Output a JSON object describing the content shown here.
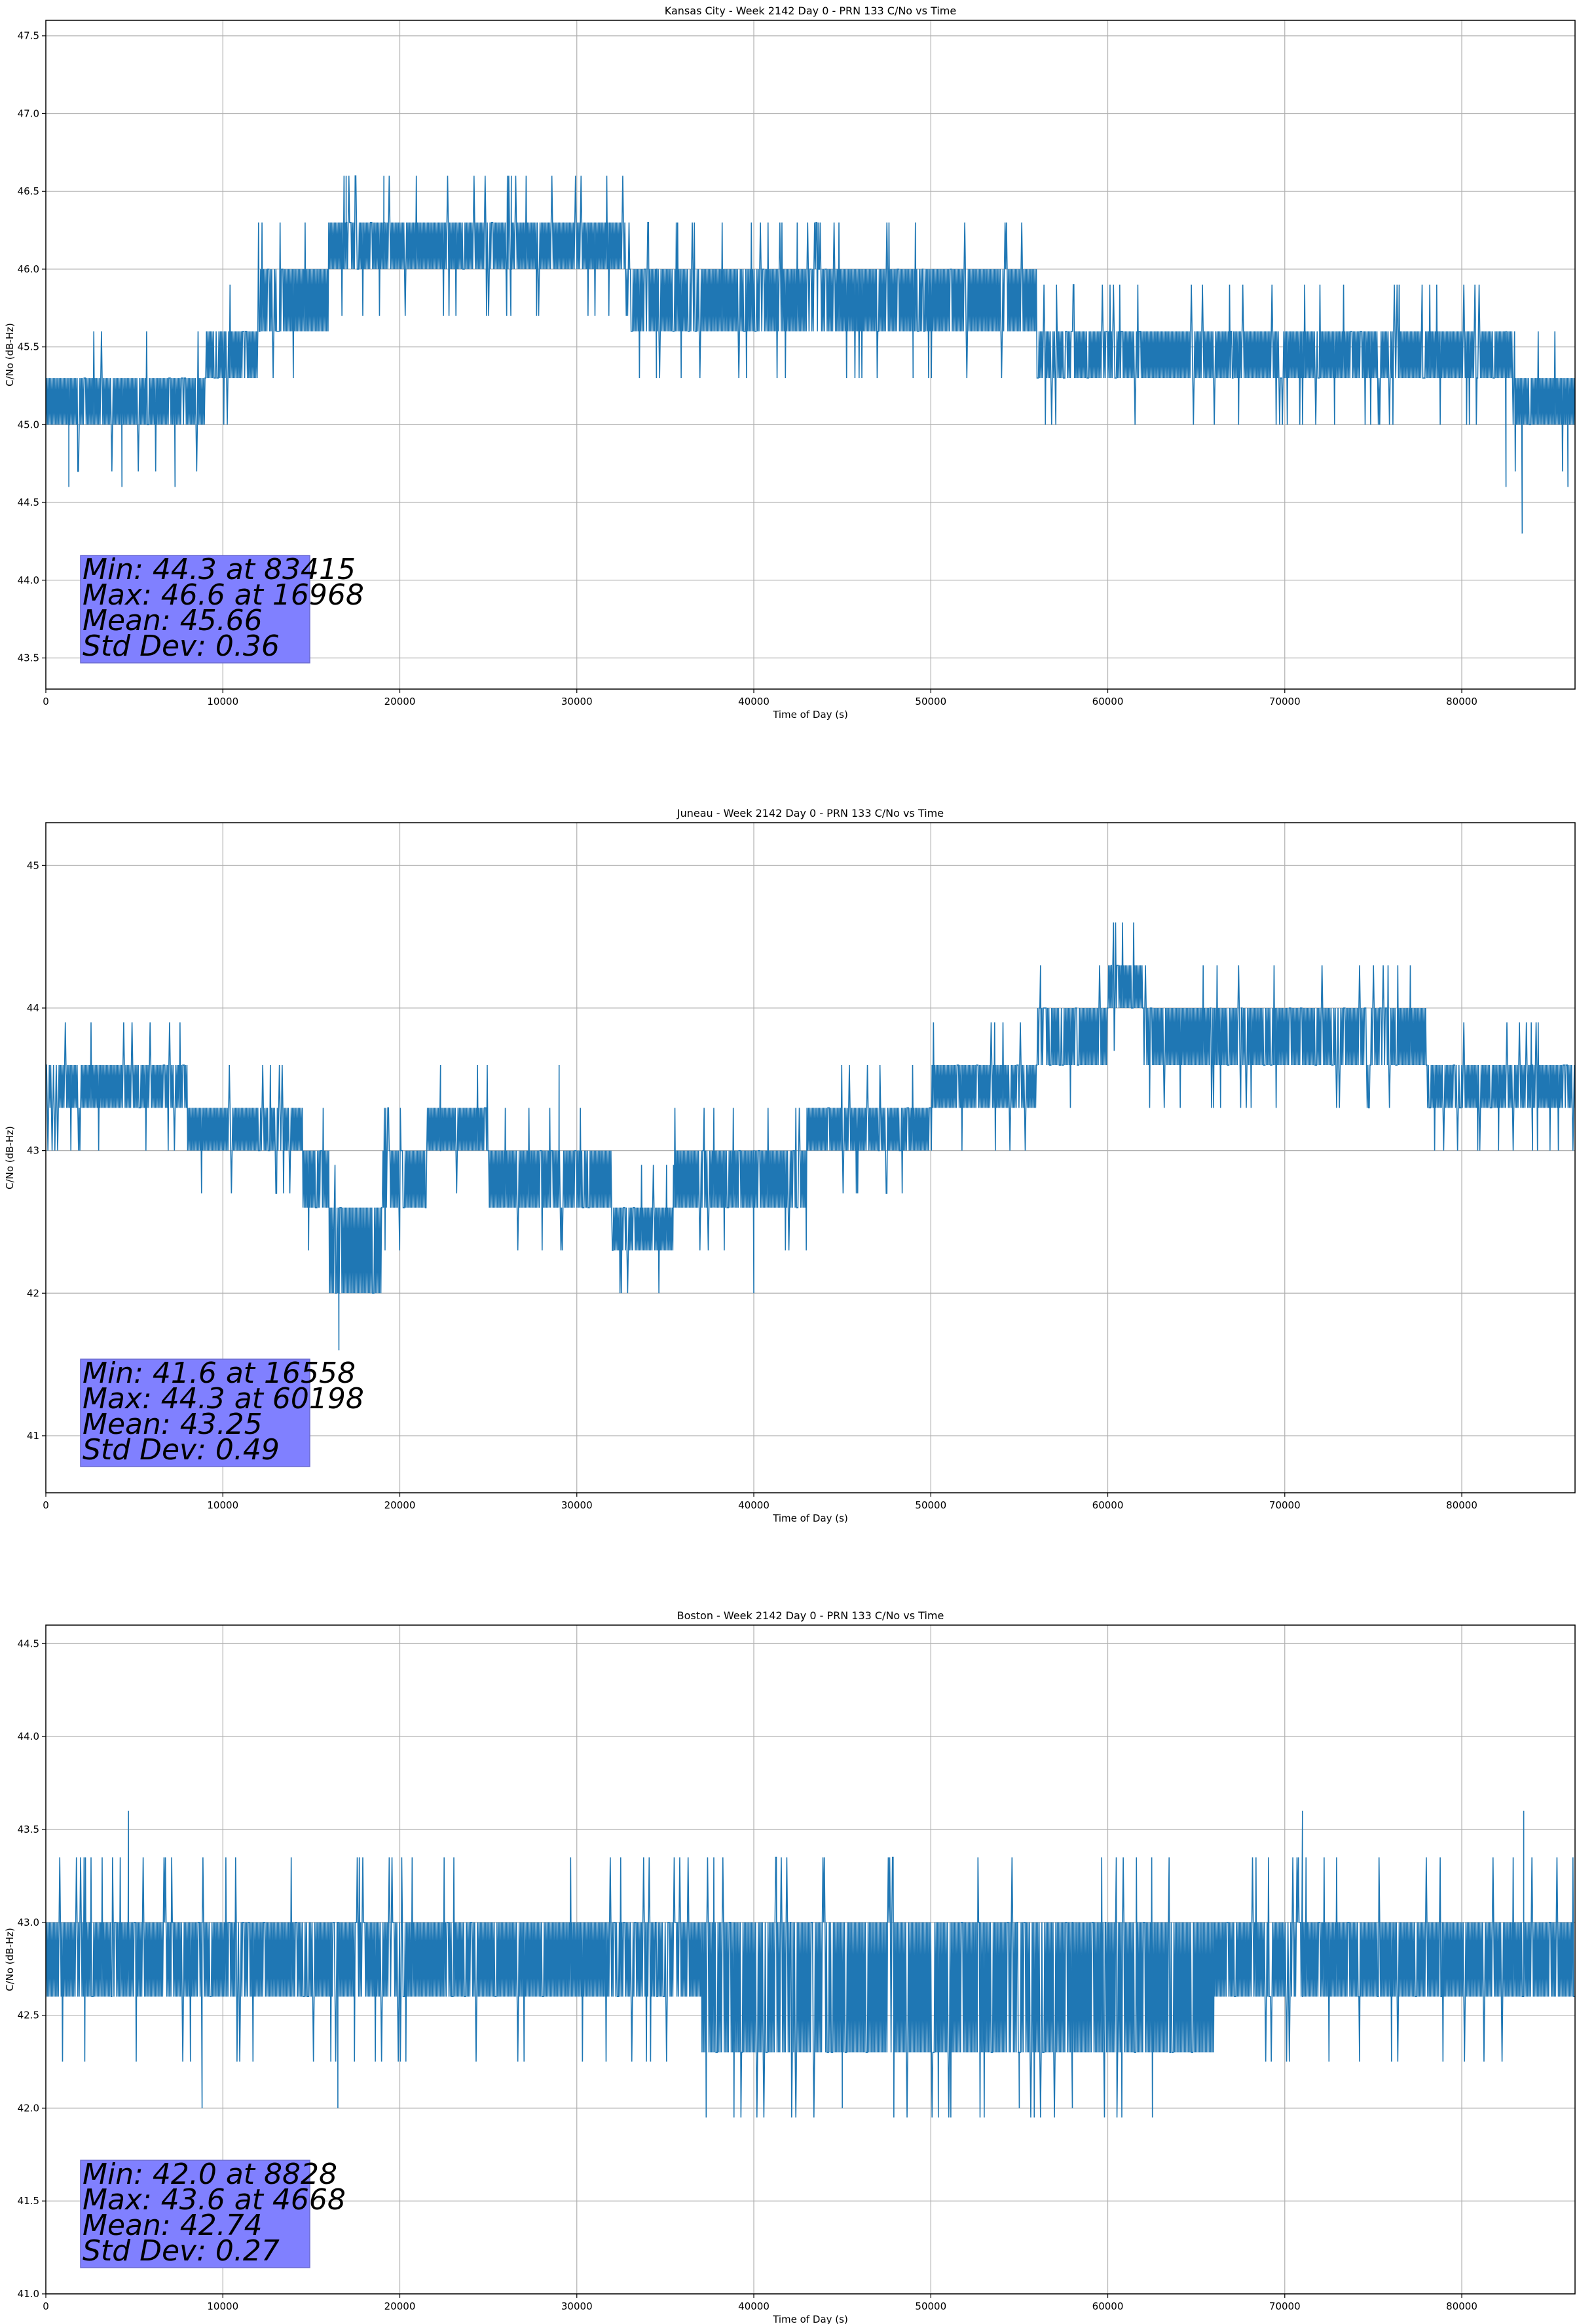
{
  "figure": {
    "background": "#ffffff",
    "line_color": "#1f77b4",
    "stats_box_color": "#8080ff"
  },
  "chart_data": [
    {
      "type": "line",
      "title": "Kansas City - Week 2142 Day 0 - PRN 133 C/No vs Time",
      "xlabel": "Time of Day (s)",
      "ylabel": "C/No (dB-Hz)",
      "xlim": [
        0,
        86400
      ],
      "ylim": [
        43.3,
        47.6
      ],
      "xticks": [
        0,
        10000,
        20000,
        30000,
        40000,
        50000,
        60000,
        70000,
        80000
      ],
      "xtick_labels": [
        "0",
        "10000",
        "20000",
        "30000",
        "40000",
        "50000",
        "60000",
        "70000",
        "80000"
      ],
      "yticks": [
        43.5,
        44.0,
        44.5,
        45.0,
        45.5,
        46.0,
        46.5,
        47.0,
        47.5
      ],
      "ytick_labels": [
        "43.5",
        "44.0",
        "44.5",
        "45.0",
        "45.5",
        "46.0",
        "46.5",
        "47.0",
        "47.5"
      ],
      "grid": true,
      "series": [
        {
          "band": [
            {
              "x_end": 9000,
              "lo": 45.0,
              "hi": 45.3
            },
            {
              "x_end": 12000,
              "lo": 45.3,
              "hi": 45.6
            },
            {
              "x_end": 16000,
              "lo": 45.6,
              "hi": 46.0
            },
            {
              "x_end": 33000,
              "lo": 46.0,
              "hi": 46.3
            },
            {
              "x_end": 56000,
              "lo": 45.6,
              "hi": 46.0
            },
            {
              "x_end": 79000,
              "lo": 45.3,
              "hi": 45.6
            },
            {
              "x_end": 83000,
              "lo": 45.3,
              "hi": 45.6
            },
            {
              "x_end": 86400,
              "lo": 45.0,
              "hi": 45.3
            }
          ],
          "noise_spread": 0.3,
          "spikes": [
            {
              "x": 83415,
              "y": 44.3
            },
            {
              "x": 16968,
              "y": 46.6
            },
            {
              "x": 26300,
              "y": 46.6
            },
            {
              "x": 19100,
              "y": 46.6
            },
            {
              "x": 1300,
              "y": 44.6
            },
            {
              "x": 4300,
              "y": 44.6
            },
            {
              "x": 7300,
              "y": 44.6
            },
            {
              "x": 34500,
              "y": 45.3
            },
            {
              "x": 49000,
              "y": 45.3
            },
            {
              "x": 82500,
              "y": 44.6
            },
            {
              "x": 86000,
              "y": 44.6
            }
          ]
        }
      ],
      "stats": [
        "Min: 44.3 at 83415",
        "Max: 46.6 at 16968",
        "Mean: 45.66",
        "Std Dev: 0.36"
      ]
    },
    {
      "type": "line",
      "title": "Juneau - Week 2142 Day 0 - PRN 133 C/No vs Time",
      "xlabel": "Time of Day (s)",
      "ylabel": "C/No (dB-Hz)",
      "xlim": [
        0,
        86400
      ],
      "ylim": [
        40.6,
        45.3
      ],
      "xticks": [
        0,
        10000,
        20000,
        30000,
        40000,
        50000,
        60000,
        70000,
        80000
      ],
      "xtick_labels": [
        "0",
        "10000",
        "20000",
        "30000",
        "40000",
        "50000",
        "60000",
        "70000",
        "80000"
      ],
      "yticks": [
        41,
        42,
        43,
        44,
        45
      ],
      "ytick_labels": [
        "41",
        "42",
        "43",
        "44",
        "45"
      ],
      "grid": true,
      "series": [
        {
          "band": [
            {
              "x_end": 8000,
              "lo": 43.3,
              "hi": 43.6
            },
            {
              "x_end": 14500,
              "lo": 43.0,
              "hi": 43.3
            },
            {
              "x_end": 16000,
              "lo": 42.6,
              "hi": 43.0
            },
            {
              "x_end": 19000,
              "lo": 42.0,
              "hi": 42.6
            },
            {
              "x_end": 21500,
              "lo": 42.6,
              "hi": 43.0
            },
            {
              "x_end": 25000,
              "lo": 43.0,
              "hi": 43.3
            },
            {
              "x_end": 32000,
              "lo": 42.6,
              "hi": 43.0
            },
            {
              "x_end": 35500,
              "lo": 42.3,
              "hi": 42.6
            },
            {
              "x_end": 43000,
              "lo": 42.6,
              "hi": 43.0
            },
            {
              "x_end": 50000,
              "lo": 43.0,
              "hi": 43.3
            },
            {
              "x_end": 56000,
              "lo": 43.3,
              "hi": 43.6
            },
            {
              "x_end": 60000,
              "lo": 43.6,
              "hi": 44.0
            },
            {
              "x_end": 62000,
              "lo": 44.0,
              "hi": 44.3
            },
            {
              "x_end": 68000,
              "lo": 43.6,
              "hi": 44.0
            },
            {
              "x_end": 71000,
              "lo": 43.6,
              "hi": 44.0
            },
            {
              "x_end": 78000,
              "lo": 43.6,
              "hi": 44.0
            },
            {
              "x_end": 86400,
              "lo": 43.3,
              "hi": 43.6
            }
          ],
          "noise_spread": 0.3,
          "spikes": [
            {
              "x": 16558,
              "y": 41.6
            },
            {
              "x": 60198,
              "y": 44.3
            },
            {
              "x": 29000,
              "y": 43.6
            },
            {
              "x": 22300,
              "y": 43.6
            },
            {
              "x": 40000,
              "y": 42.0
            },
            {
              "x": 84000,
              "y": 43.0
            }
          ]
        }
      ],
      "stats": [
        "Min: 41.6 at 16558",
        "Max: 44.3 at 60198",
        "Mean: 43.25",
        "Std Dev: 0.49"
      ]
    },
    {
      "type": "line",
      "title": "Boston - Week 2142 Day 0 - PRN 133 C/No vs Time",
      "xlabel": "Time of Day (s)",
      "ylabel": "C/No (dB-Hz)",
      "xlim": [
        0,
        86400
      ],
      "ylim": [
        41.0,
        44.6
      ],
      "xticks": [
        0,
        10000,
        20000,
        30000,
        40000,
        50000,
        60000,
        70000,
        80000
      ],
      "xtick_labels": [
        "0",
        "10000",
        "20000",
        "30000",
        "40000",
        "50000",
        "60000",
        "70000",
        "80000"
      ],
      "yticks": [
        41.0,
        41.5,
        42.0,
        42.5,
        43.0,
        43.5,
        44.0,
        44.5
      ],
      "ytick_labels": [
        "41.0",
        "41.5",
        "42.0",
        "42.5",
        "43.0",
        "43.5",
        "44.0",
        "44.5"
      ],
      "grid": true,
      "series": [
        {
          "band": [
            {
              "x_end": 37000,
              "lo": 42.6,
              "hi": 43.0
            },
            {
              "x_end": 66000,
              "lo": 42.3,
              "hi": 43.0
            },
            {
              "x_end": 86400,
              "lo": 42.6,
              "hi": 43.0
            }
          ],
          "noise_spread": 0.35,
          "spikes": [
            {
              "x": 8828,
              "y": 42.0
            },
            {
              "x": 4668,
              "y": 43.6
            },
            {
              "x": 71000,
              "y": 43.6
            },
            {
              "x": 83500,
              "y": 43.6
            },
            {
              "x": 16500,
              "y": 42.0
            },
            {
              "x": 45000,
              "y": 42.0
            },
            {
              "x": 55000,
              "y": 42.0
            },
            {
              "x": 58000,
              "y": 42.0
            }
          ]
        }
      ],
      "stats": [
        "Min: 42.0 at 8828",
        "Max: 43.6 at 4668",
        "Mean: 42.74",
        "Std Dev: 0.27"
      ]
    }
  ]
}
